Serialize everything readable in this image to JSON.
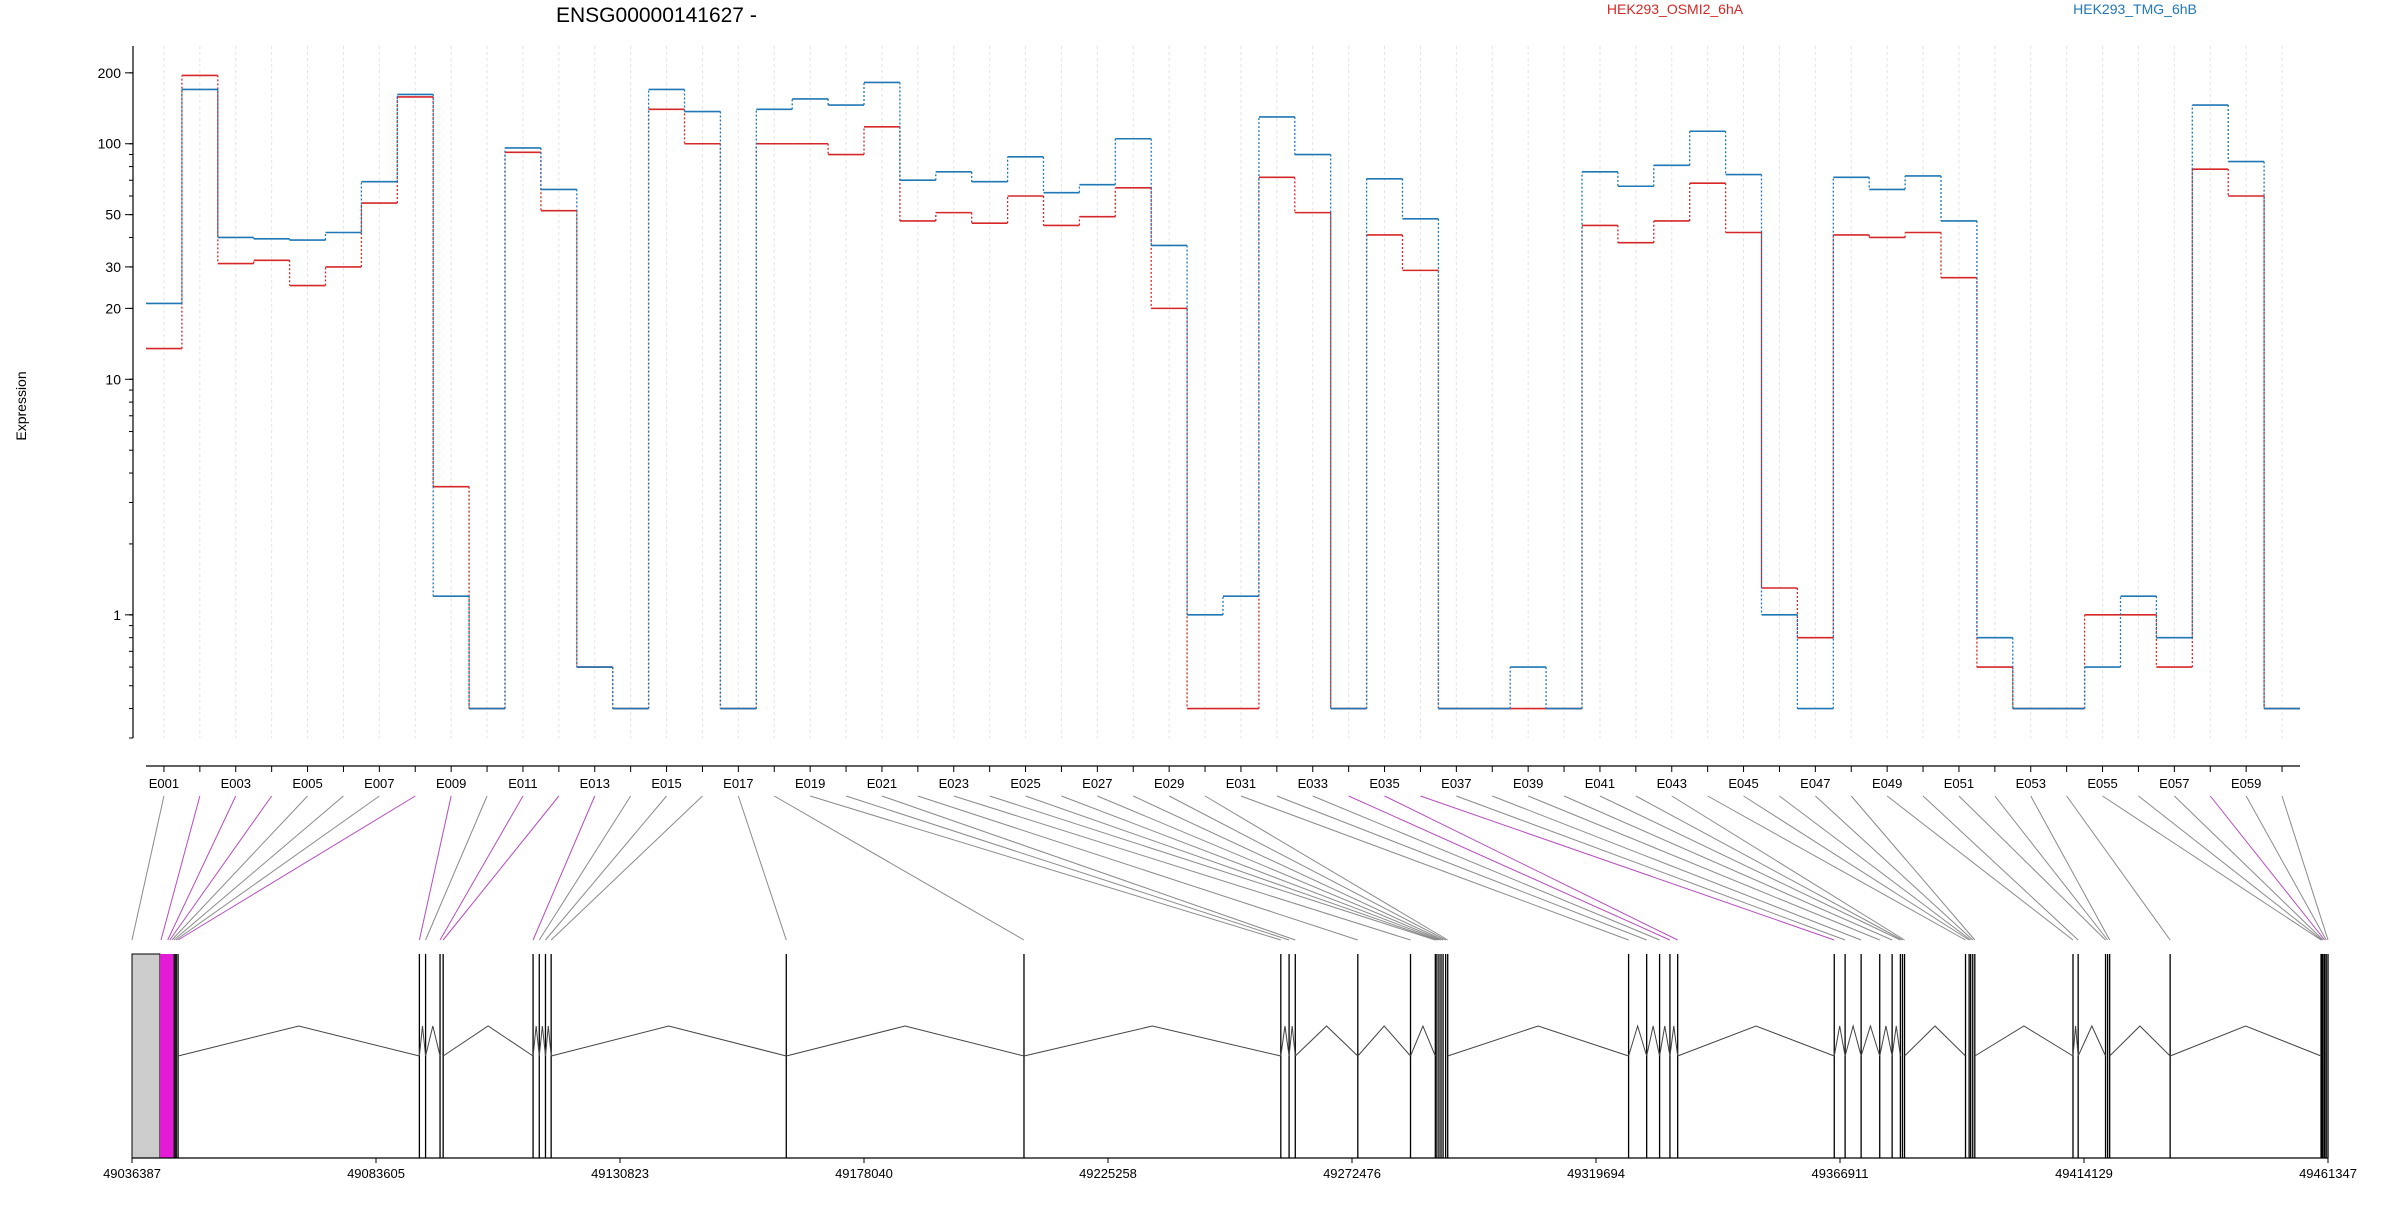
{
  "chart_data": {
    "type": "line",
    "title": "ENSG00000141627 -",
    "ylabel": "Expression",
    "yscale": "log",
    "ylim": [
      0.3,
      260
    ],
    "yticks": [
      1,
      10,
      20,
      30,
      50,
      100,
      200
    ],
    "ytick_labels": [
      "1",
      "10",
      "20",
      "30",
      "50",
      "100",
      "200"
    ],
    "legend_position": "top",
    "colors": {
      "series_a": "#d62728",
      "series_b": "#1f77b4",
      "highlight": "#e41ad6",
      "grey_box": "#cccccc"
    },
    "series": [
      {
        "name": "HEK293_OSMI2_6hA",
        "color": "#d62728",
        "values": [
          13.5,
          195,
          31,
          32,
          25,
          30,
          56,
          158,
          3.5,
          0.4,
          92,
          52,
          0.6,
          0.4,
          140,
          100,
          0.4,
          100,
          100,
          90,
          118,
          47,
          51,
          46,
          60,
          45,
          49,
          65,
          20,
          0.4,
          0.4,
          72,
          51,
          0.4,
          41,
          29,
          0.4,
          0.4,
          0.4,
          0.4,
          45,
          38,
          47,
          68,
          42,
          1.3,
          0.8,
          41,
          40,
          42,
          27,
          0.6,
          0.4,
          0.4,
          1.0,
          1.0,
          0.6,
          78,
          60,
          0.4
        ]
      },
      {
        "name": "HEK293_TMG_6hB",
        "color": "#1f77b4",
        "values": [
          21,
          170,
          40,
          39.5,
          39,
          42,
          69,
          162,
          1.2,
          0.4,
          96,
          64,
          0.6,
          0.4,
          170,
          137,
          0.4,
          140,
          155,
          146,
          182,
          70,
          76,
          69,
          88,
          62,
          67,
          105,
          37,
          1.0,
          1.2,
          130,
          90,
          0.4,
          71,
          48,
          0.4,
          0.4,
          0.6,
          0.4,
          76,
          66,
          81,
          113,
          74,
          1.0,
          0.4,
          72,
          64,
          73,
          47,
          0.8,
          0.4,
          0.4,
          0.6,
          1.2,
          0.8,
          146,
          84,
          0.4
        ]
      }
    ],
    "exons": [
      "E001",
      "E002",
      "E003",
      "E004",
      "E005",
      "E006",
      "E007",
      "E008",
      "E009",
      "E010",
      "E011",
      "E012",
      "E013",
      "E014",
      "E015",
      "E016",
      "E017",
      "E018",
      "E019",
      "E020",
      "E021",
      "E022",
      "E023",
      "E024",
      "E025",
      "E026",
      "E027",
      "E028",
      "E029",
      "E030",
      "E031",
      "E032",
      "E033",
      "E034",
      "E035",
      "E036",
      "E037",
      "E038",
      "E039",
      "E040",
      "E041",
      "E042",
      "E043",
      "E044",
      "E045",
      "E046",
      "E047",
      "E048",
      "E049",
      "E050",
      "E051",
      "E052",
      "E053",
      "E054",
      "E055",
      "E056",
      "E057",
      "E058",
      "E059",
      "E060"
    ],
    "exon_labels": [
      "E001",
      "E003",
      "E005",
      "E007",
      "E009",
      "E011",
      "E013",
      "E015",
      "E017",
      "E019",
      "E021",
      "E023",
      "E025",
      "E027",
      "E029",
      "E031",
      "E033",
      "E035",
      "E037",
      "E039",
      "E041",
      "E043",
      "E045",
      "E047",
      "E049",
      "E051",
      "E053",
      "E055",
      "E057",
      "E059"
    ],
    "genomic_axis": {
      "ticks": [
        49036387,
        49083605,
        49130823,
        49178040,
        49225258,
        49272476,
        49319694,
        49366911,
        49414129,
        49461347
      ],
      "tick_labels": [
        "49036387",
        "49083605",
        "49130823",
        "49178040",
        "49225258",
        "49272476",
        "49319694",
        "49366911",
        "49414129",
        "49461347"
      ],
      "range": [
        49036387,
        49461347
      ]
    },
    "gene_model": {
      "exon_positions": [
        49036387,
        49042000,
        49043300,
        49043700,
        49044100,
        49044500,
        49044900,
        49045300,
        49092000,
        49093200,
        49096000,
        49096600,
        49114000,
        49115200,
        49116400,
        49117500,
        49163000,
        49209000,
        49258700,
        49260300,
        49261500,
        49273600,
        49283800,
        49288600,
        49288900,
        49289300,
        49289700,
        49290100,
        49290600,
        49291000,
        49326000,
        49329500,
        49332000,
        49334000,
        49335500,
        49365800,
        49367900,
        49371000,
        49374600,
        49377000,
        49378600,
        49379000,
        49379400,
        49391200,
        49391900,
        49392200,
        49392600,
        49393000,
        49412000,
        49413000,
        49418300,
        49418700,
        49419100,
        49430800,
        49460000,
        49460200,
        49460400,
        49460700,
        49461000,
        49461347
      ],
      "highlighted_exons": [
        1,
        2,
        3,
        7,
        8,
        10,
        11,
        12,
        33,
        34,
        35,
        57
      ],
      "gray_region": [
        49036387,
        49041800
      ],
      "magenta_region": [
        49041800,
        49044400
      ],
      "dark_bar": [
        49044400,
        49045100
      ]
    }
  }
}
